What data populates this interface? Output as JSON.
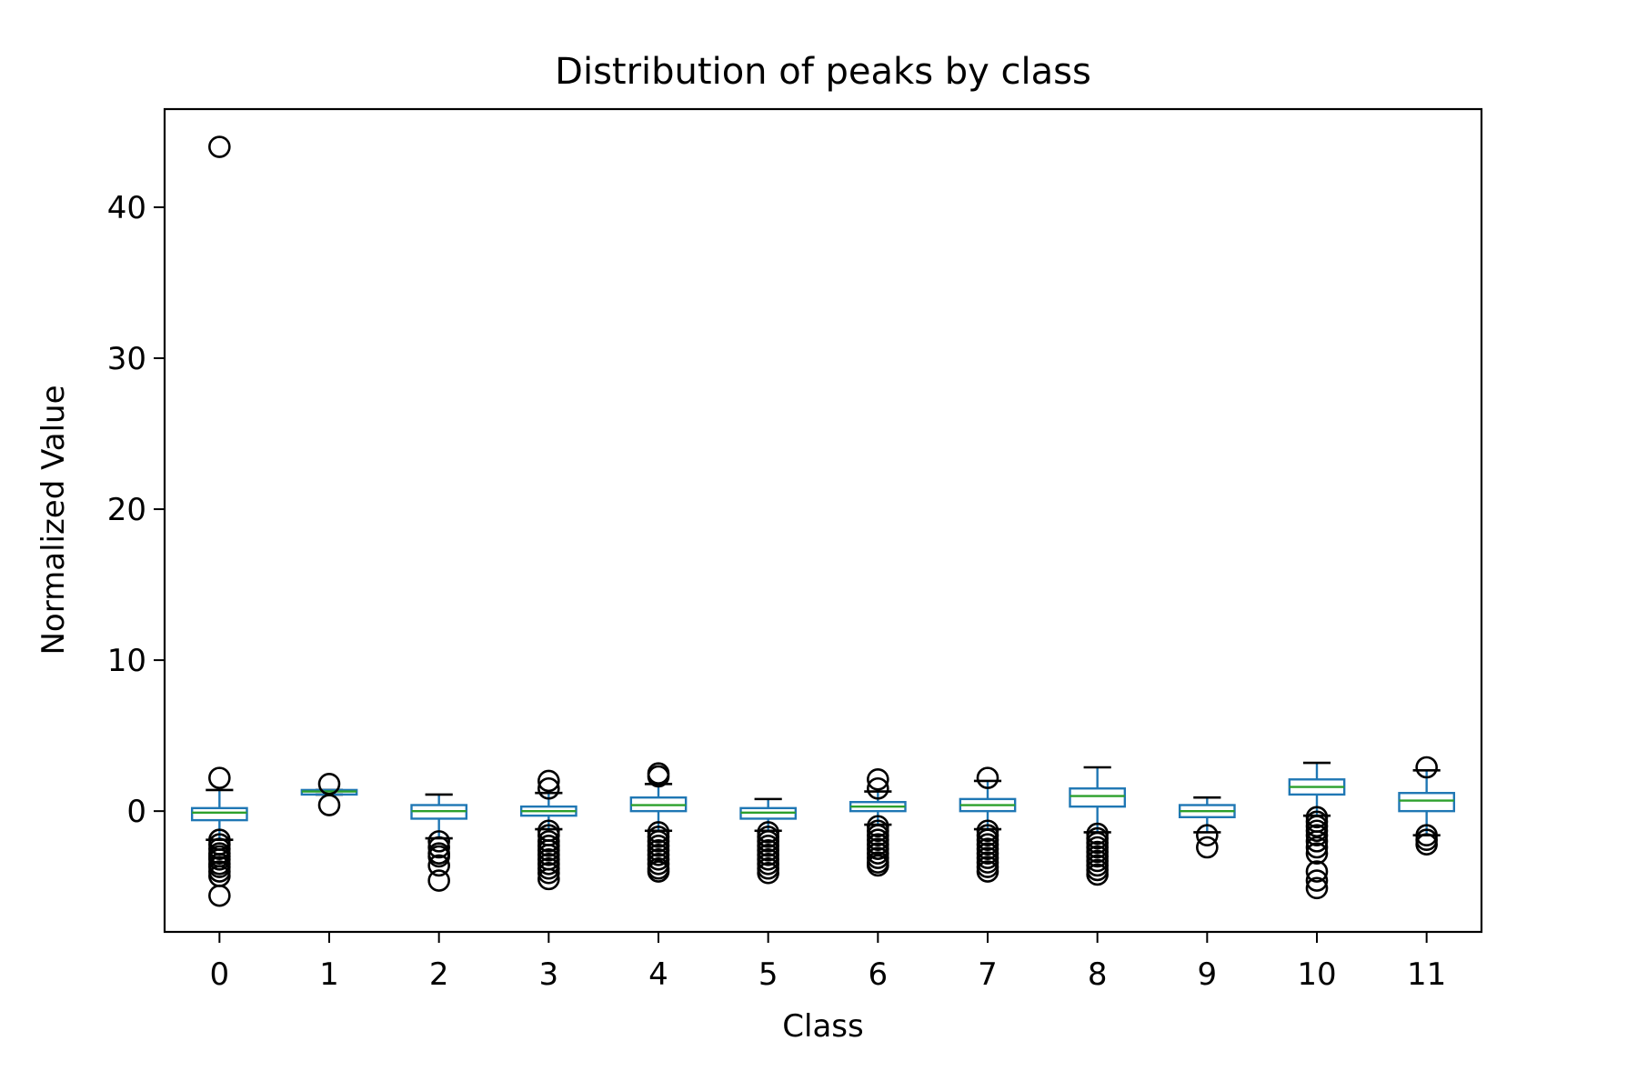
{
  "chart_data": {
    "type": "box",
    "title": "Distribution of peaks by class",
    "xlabel": "Class",
    "ylabel": "Normalized Value",
    "ylim": [
      -8,
      46.5
    ],
    "yticks": [
      0,
      10,
      20,
      30,
      40
    ],
    "grid": false,
    "categories": [
      "0",
      "1",
      "2",
      "3",
      "4",
      "5",
      "6",
      "7",
      "8",
      "9",
      "10",
      "11"
    ],
    "boxes": [
      {
        "category": "0",
        "whisker_low": -1.9,
        "q1": -0.6,
        "median": -0.1,
        "q3": 0.2,
        "whisker_high": 1.4,
        "fliers": [
          44.0,
          2.2,
          -1.9,
          -2.2,
          -2.5,
          -2.8,
          -3.0,
          -3.2,
          -3.5,
          -3.7,
          -4.0,
          -4.3,
          -5.6
        ]
      },
      {
        "category": "1",
        "whisker_low": 1.1,
        "q1": 1.1,
        "median": 1.3,
        "q3": 1.4,
        "whisker_high": 1.4,
        "fliers": [
          1.8,
          0.4
        ]
      },
      {
        "category": "2",
        "whisker_low": -1.8,
        "q1": -0.5,
        "median": 0.0,
        "q3": 0.4,
        "whisker_high": 1.1,
        "fliers": [
          -2.0,
          -2.4,
          -2.8,
          -3.0,
          -3.6,
          -4.6
        ]
      },
      {
        "category": "3",
        "whisker_low": -1.2,
        "q1": -0.3,
        "median": 0.0,
        "q3": 0.3,
        "whisker_high": 1.2,
        "fliers": [
          2.0,
          1.5,
          -1.3,
          -1.6,
          -2.0,
          -2.3,
          -2.6,
          -2.9,
          -3.2,
          -3.5,
          -3.8,
          -4.1,
          -4.5
        ]
      },
      {
        "category": "4",
        "whisker_low": -1.3,
        "q1": 0.0,
        "median": 0.4,
        "q3": 0.9,
        "whisker_high": 1.8,
        "fliers": [
          2.3,
          2.5,
          -1.4,
          -1.7,
          -2.0,
          -2.3,
          -2.6,
          -2.9,
          -3.2,
          -3.5,
          -3.8,
          -4.0
        ]
      },
      {
        "category": "5",
        "whisker_low": -1.3,
        "q1": -0.5,
        "median": -0.1,
        "q3": 0.2,
        "whisker_high": 0.8,
        "fliers": [
          -1.4,
          -1.7,
          -2.0,
          -2.3,
          -2.6,
          -2.9,
          -3.2,
          -3.5,
          -3.8,
          -4.1
        ]
      },
      {
        "category": "6",
        "whisker_low": -0.9,
        "q1": 0.0,
        "median": 0.3,
        "q3": 0.6,
        "whisker_high": 1.3,
        "fliers": [
          2.1,
          1.5,
          -1.0,
          -1.3,
          -1.6,
          -1.9,
          -2.2,
          -2.5,
          -2.8,
          -3.1,
          -3.4,
          -3.6
        ]
      },
      {
        "category": "7",
        "whisker_low": -1.2,
        "q1": 0.0,
        "median": 0.4,
        "q3": 0.8,
        "whisker_high": 2.0,
        "fliers": [
          2.2,
          -1.3,
          -1.6,
          -1.9,
          -2.2,
          -2.5,
          -2.8,
          -3.1,
          -3.4,
          -3.7,
          -4.0
        ]
      },
      {
        "category": "8",
        "whisker_low": -1.4,
        "q1": 0.3,
        "median": 1.0,
        "q3": 1.5,
        "whisker_high": 2.9,
        "fliers": [
          -1.5,
          -1.8,
          -2.1,
          -2.4,
          -2.7,
          -3.0,
          -3.3,
          -3.6,
          -3.9,
          -4.2
        ]
      },
      {
        "category": "9",
        "whisker_low": -1.4,
        "q1": -0.4,
        "median": 0.0,
        "q3": 0.4,
        "whisker_high": 0.9,
        "fliers": [
          -1.6,
          -2.4
        ]
      },
      {
        "category": "10",
        "whisker_low": -0.3,
        "q1": 1.1,
        "median": 1.6,
        "q3": 2.1,
        "whisker_high": 3.2,
        "fliers": [
          -0.4,
          -0.7,
          -1.0,
          -1.3,
          -1.6,
          -2.0,
          -2.4,
          -2.8,
          -4.0,
          -4.6,
          -5.1
        ]
      },
      {
        "category": "11",
        "whisker_low": -1.6,
        "q1": 0.0,
        "median": 0.7,
        "q3": 1.2,
        "whisker_high": 2.7,
        "fliers": [
          2.9,
          -1.6,
          -1.9,
          -2.2
        ]
      }
    ]
  },
  "colors": {
    "box": "#1f77b4",
    "median": "#2ca02c",
    "flier": "#000000",
    "cap": "#000000"
  }
}
